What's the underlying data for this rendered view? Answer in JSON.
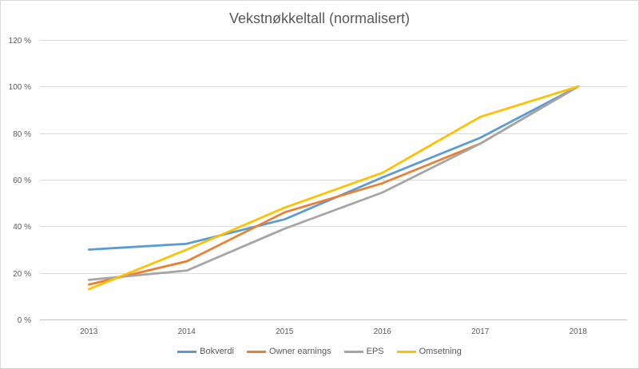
{
  "chart_data": {
    "type": "line",
    "title": "Vekstnøkkeltall (normalisert)",
    "xlabel": "",
    "ylabel": "",
    "categories": [
      "2013",
      "2014",
      "2015",
      "2016",
      "2017",
      "2018"
    ],
    "ylim": [
      0,
      120
    ],
    "yticks": [
      0,
      20,
      40,
      60,
      80,
      100,
      120
    ],
    "ytick_labels": [
      "0 %",
      "20 %",
      "40 %",
      "60 %",
      "80 %",
      "100 %",
      "120 %"
    ],
    "grid": true,
    "legend_position": "bottom",
    "series": [
      {
        "name": "Bokverdi",
        "color": "#5b9bd5",
        "values": [
          30,
          32.5,
          43,
          61,
          78,
          100
        ]
      },
      {
        "name": "Owner earnings",
        "color": "#ed7d31",
        "values": [
          15,
          25,
          46,
          58.5,
          75.5,
          100
        ]
      },
      {
        "name": "EPS",
        "color": "#a5a5a5",
        "values": [
          17,
          21,
          39,
          54.5,
          75.5,
          100
        ]
      },
      {
        "name": "Omsetning",
        "color": "#ffc000",
        "values": [
          13,
          30,
          48,
          63,
          87,
          100
        ]
      }
    ]
  }
}
